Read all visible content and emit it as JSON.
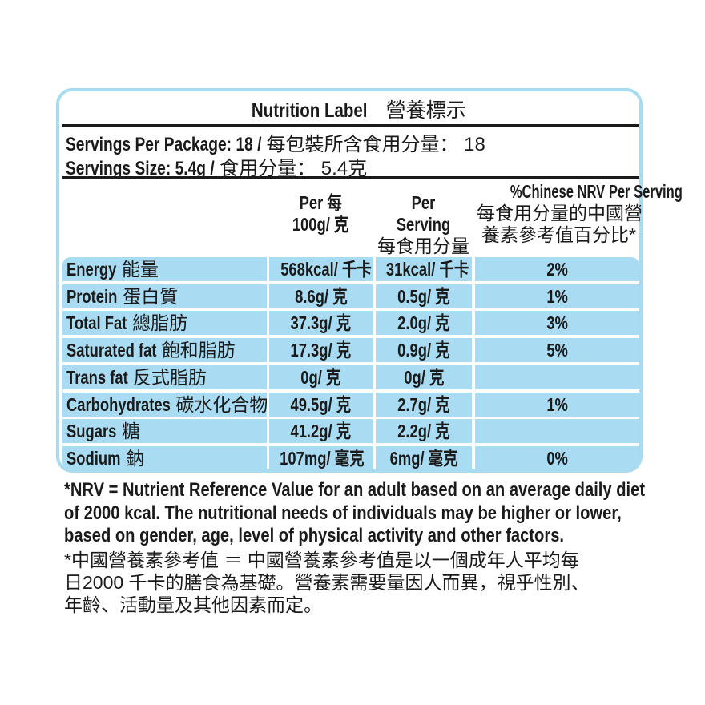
{
  "title_en": "Nutrition Label",
  "title_zh": "營養標示",
  "servings_per_package_en": "Servings Per Package: 18 /",
  "servings_per_package_zh": "每包裝所含食用分量： 18",
  "serving_size_en": "Servings Size: 5.4g /",
  "serving_size_zh": "食用分量： 5.4克",
  "columns": {
    "per100_en": "Per 每",
    "per100_zh": "100g/ 克",
    "perserving_en": "Per Serving",
    "perserving_zh": "每食用分量",
    "nrv_en": "%Chinese NRV Per Serving",
    "nrv_zh1": "每食用分量的中國營",
    "nrv_zh2": "養素參考值百分比*"
  },
  "rows": [
    {
      "en": "Energy",
      "zh": "能量",
      "per100": "568kcal/ 千卡",
      "serving": "31kcal/ 千卡",
      "nrv": "2%"
    },
    {
      "en": "Protein",
      "zh": "蛋白質",
      "per100": "8.6g/ 克",
      "serving": "0.5g/ 克",
      "nrv": "1%"
    },
    {
      "en": "Total Fat",
      "zh": "總脂肪",
      "per100": "37.3g/ 克",
      "serving": "2.0g/ 克",
      "nrv": "3%"
    },
    {
      "en": "Saturated fat",
      "zh": "飽和脂肪",
      "per100": "17.3g/ 克",
      "serving": "0.9g/ 克",
      "nrv": "5%"
    },
    {
      "en": "Trans fat",
      "zh": "反式脂肪",
      "per100": "0g/ 克",
      "serving": "0g/ 克",
      "nrv": ""
    },
    {
      "en": "Carbohydrates",
      "zh": "碳水化合物",
      "per100": "49.5g/ 克",
      "serving": "2.7g/ 克",
      "nrv": "1%"
    },
    {
      "en": "Sugars",
      "zh": "糖",
      "per100": "41.2g/ 克",
      "serving": "2.2g/ 克",
      "nrv": ""
    },
    {
      "en": "Sodium",
      "zh": "鈉",
      "per100": "107mg/ 毫克",
      "serving": "6mg/ 毫克",
      "nrv": "0%"
    }
  ],
  "footnote_en": [
    "*NRV = Nutrient Reference Value for an adult based on an average daily diet",
    "of 2000 kcal. The nutritional needs of individuals may be higher or lower,",
    "based on gender, age, level of physical activity and other factors."
  ],
  "footnote_zh": [
    "*中國營養素參考值 ＝ 中國營養素參考值是以一個成年人平均每",
    "日2000 千卡的膳食為基礎。營養素需要量因人而異，視乎性別、",
    "年齡、活動量及其他因素而定。"
  ],
  "colors": {
    "border": "#a9dbef",
    "cell": "#a9dcf3",
    "text": "#1a1a1a"
  }
}
